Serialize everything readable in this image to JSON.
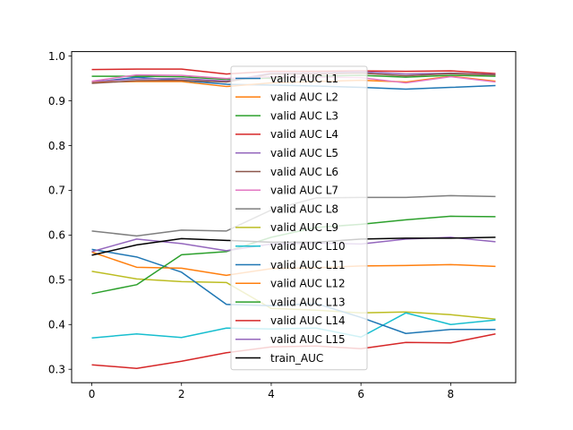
{
  "chart_data": {
    "type": "line",
    "title": "",
    "xlabel": "",
    "ylabel": "",
    "xlim": [
      -0.45,
      9.45
    ],
    "ylim": [
      0.27,
      1.01
    ],
    "x": [
      0,
      1,
      2,
      3,
      4,
      5,
      6,
      7,
      8,
      9
    ],
    "xticks": [
      "0",
      "2",
      "4",
      "6",
      "8"
    ],
    "yticks": [
      "0.3",
      "0.4",
      "0.5",
      "0.6",
      "0.7",
      "0.8",
      "0.9",
      "1.0"
    ],
    "grid": false,
    "legend_position": "center",
    "series": [
      {
        "name": "valid AUC L1",
        "color": "#1f77b4",
        "values": [
          0.941,
          0.953,
          0.945,
          0.937,
          0.935,
          0.933,
          0.93,
          0.926,
          0.93,
          0.934
        ]
      },
      {
        "name": "valid AUC L2",
        "color": "#ff7f0e",
        "values": [
          0.942,
          0.943,
          0.943,
          0.932,
          0.94,
          0.943,
          0.946,
          0.942,
          0.955,
          0.944
        ]
      },
      {
        "name": "valid AUC L3",
        "color": "#2ca02c",
        "values": [
          0.955,
          0.955,
          0.954,
          0.948,
          0.951,
          0.955,
          0.957,
          0.953,
          0.957,
          0.955
        ]
      },
      {
        "name": "valid AUC L4",
        "color": "#d62728",
        "values": [
          0.97,
          0.971,
          0.971,
          0.96,
          0.966,
          0.966,
          0.967,
          0.966,
          0.967,
          0.961
        ]
      },
      {
        "name": "valid AUC L5",
        "color": "#9467bd",
        "values": [
          0.943,
          0.949,
          0.95,
          0.944,
          0.962,
          0.962,
          0.965,
          0.96,
          0.962,
          0.959
        ]
      },
      {
        "name": "valid AUC L6",
        "color": "#8c564b",
        "values": [
          0.939,
          0.945,
          0.946,
          0.942,
          0.96,
          0.96,
          0.962,
          0.956,
          0.961,
          0.958
        ]
      },
      {
        "name": "valid AUC L7",
        "color": "#e377c2",
        "values": [
          0.944,
          0.958,
          0.957,
          0.95,
          0.954,
          0.953,
          0.952,
          0.94,
          0.954,
          0.942
        ]
      },
      {
        "name": "valid AUC L8",
        "color": "#7f7f7f",
        "values": [
          0.609,
          0.598,
          0.611,
          0.609,
          0.656,
          0.683,
          0.684,
          0.684,
          0.688,
          0.686
        ]
      },
      {
        "name": "valid AUC L9",
        "color": "#bcbd22",
        "values": [
          0.519,
          0.502,
          0.496,
          0.494,
          0.436,
          0.432,
          0.426,
          0.428,
          0.422,
          0.412
        ]
      },
      {
        "name": "valid AUC L10",
        "color": "#17becf",
        "values": [
          0.37,
          0.379,
          0.371,
          0.392,
          0.39,
          0.392,
          0.372,
          0.426,
          0.4,
          0.41
        ]
      },
      {
        "name": "valid AUC L11",
        "color": "#1f77b4",
        "values": [
          0.568,
          0.551,
          0.517,
          0.445,
          0.442,
          0.447,
          0.416,
          0.38,
          0.389,
          0.389
        ]
      },
      {
        "name": "valid AUC L12",
        "color": "#ff7f0e",
        "values": [
          0.562,
          0.528,
          0.526,
          0.51,
          0.525,
          0.527,
          0.531,
          0.532,
          0.534,
          0.53
        ]
      },
      {
        "name": "valid AUC L13",
        "color": "#2ca02c",
        "values": [
          0.469,
          0.489,
          0.556,
          0.563,
          0.595,
          0.617,
          0.624,
          0.634,
          0.642,
          0.641
        ]
      },
      {
        "name": "valid AUC L14",
        "color": "#d62728",
        "values": [
          0.31,
          0.302,
          0.318,
          0.337,
          0.35,
          0.352,
          0.346,
          0.36,
          0.359,
          0.379
        ]
      },
      {
        "name": "valid AUC L15",
        "color": "#9467bd",
        "values": [
          0.563,
          0.591,
          0.581,
          0.565,
          0.58,
          0.582,
          0.58,
          0.591,
          0.595,
          0.585
        ]
      },
      {
        "name": "train_AUC",
        "color": "#000000",
        "values": [
          0.555,
          0.578,
          0.592,
          0.588,
          0.584,
          0.584,
          0.591,
          0.593,
          0.593,
          0.595
        ]
      }
    ]
  }
}
